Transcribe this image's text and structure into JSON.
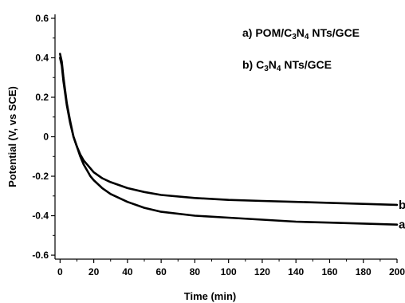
{
  "chart_data": {
    "type": "line",
    "title": "",
    "xlabel": "Time (min)",
    "ylabel": "Potential (V, vs SCE)",
    "xlim": [
      -3,
      200
    ],
    "ylim": [
      -0.62,
      0.62
    ],
    "xticks": [
      0,
      20,
      40,
      60,
      80,
      100,
      120,
      140,
      160,
      180,
      200
    ],
    "yticks": [
      -0.6,
      -0.4,
      -0.2,
      0,
      0.2,
      0.4,
      0.6
    ],
    "ytick_labels": [
      "-0.6",
      "-0.4",
      "-0.2",
      "0",
      "0.2",
      "0.4",
      "0.6"
    ],
    "grid": false,
    "series": [
      {
        "name": "a) POM/C3N4 NTs/GCE",
        "end_label": "a",
        "x": [
          0,
          1,
          2,
          4,
          6,
          8,
          10,
          12,
          14,
          16,
          18,
          20,
          25,
          30,
          40,
          50,
          60,
          80,
          100,
          120,
          140,
          160,
          180,
          200
        ],
        "y": [
          0.4,
          0.36,
          0.28,
          0.16,
          0.07,
          0.0,
          -0.05,
          -0.1,
          -0.14,
          -0.17,
          -0.2,
          -0.22,
          -0.26,
          -0.29,
          -0.33,
          -0.36,
          -0.38,
          -0.4,
          -0.41,
          -0.42,
          -0.43,
          -0.435,
          -0.44,
          -0.445
        ]
      },
      {
        "name": "b) C3N4 NTs/GCE",
        "end_label": "b",
        "x": [
          0,
          1,
          2,
          4,
          6,
          8,
          10,
          12,
          14,
          16,
          18,
          20,
          25,
          30,
          40,
          50,
          60,
          80,
          100,
          120,
          140,
          160,
          180,
          200
        ],
        "y": [
          0.42,
          0.38,
          0.3,
          0.17,
          0.08,
          0.0,
          -0.05,
          -0.09,
          -0.12,
          -0.14,
          -0.16,
          -0.18,
          -0.21,
          -0.23,
          -0.26,
          -0.28,
          -0.295,
          -0.31,
          -0.32,
          -0.325,
          -0.33,
          -0.335,
          -0.34,
          -0.345
        ]
      }
    ],
    "legend": {
      "placement": "top-right",
      "entries": [
        {
          "prefix": "a) POM/C",
          "sub1": "3",
          "mid": "N",
          "sub2": "4",
          "suffix": " NTs/GCE"
        },
        {
          "prefix": "b) C",
          "sub1": "3",
          "mid": "N",
          "sub2": "4",
          "suffix": " NTs/GCE"
        }
      ]
    },
    "colors": {
      "line": "#000000",
      "axis": "#000000",
      "background": "#ffffff"
    }
  }
}
